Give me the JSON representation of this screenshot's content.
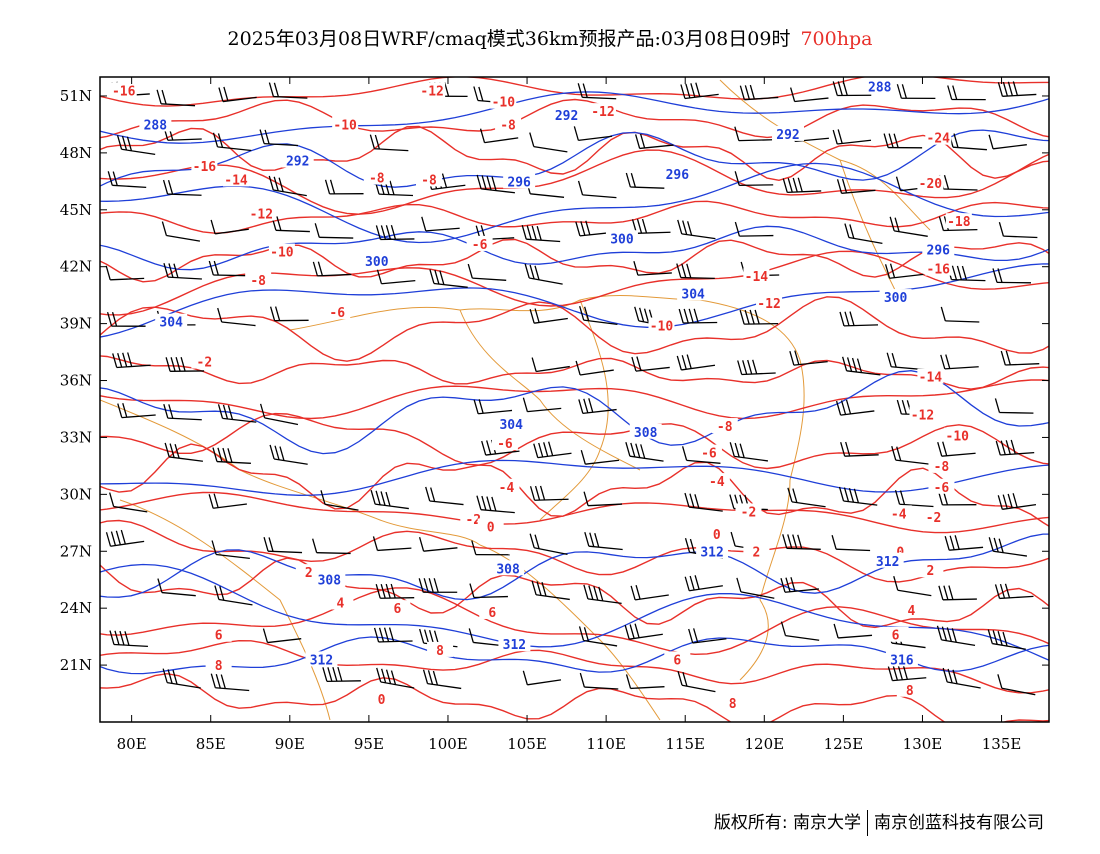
{
  "header": {
    "title": "2025年03月08日WRF/cmaq模式36km预报产品:03月08日09时",
    "level": "700hpa",
    "level_color": "#e8302a"
  },
  "map": {
    "projection": "lat-lon",
    "lon_range": [
      78,
      138
    ],
    "lat_range": [
      18,
      52
    ],
    "x_ticks": [
      "80E",
      "85E",
      "90E",
      "95E",
      "100E",
      "105E",
      "110E",
      "115E",
      "120E",
      "125E",
      "130E",
      "135E"
    ],
    "y_ticks": [
      "51N",
      "48N",
      "45N",
      "42N",
      "39N",
      "36N",
      "33N",
      "30N",
      "27N",
      "24N",
      "21N"
    ],
    "layers": {
      "temperature_contours": {
        "color": "#e8302a",
        "unit": "°C"
      },
      "geopotential_height_contours": {
        "color": "#1f3fd8"
      },
      "wind_barbs": {
        "color": "#000000"
      },
      "boundaries": {
        "color": "#e39a3a"
      }
    },
    "height_labels": [
      {
        "text": "288",
        "lon": 81.5,
        "lat": 49.5
      },
      {
        "text": "292",
        "lon": 90.5,
        "lat": 47.6
      },
      {
        "text": "296",
        "lon": 104.5,
        "lat": 46.5
      },
      {
        "text": "300",
        "lon": 111.0,
        "lat": 43.5
      },
      {
        "text": "300",
        "lon": 95.5,
        "lat": 42.3
      },
      {
        "text": "304",
        "lon": 82.5,
        "lat": 39.1
      },
      {
        "text": "304",
        "lon": 104.0,
        "lat": 33.7
      },
      {
        "text": "308",
        "lon": 112.5,
        "lat": 33.3
      },
      {
        "text": "308",
        "lon": 92.5,
        "lat": 25.5
      },
      {
        "text": "308",
        "lon": 103.8,
        "lat": 26.1
      },
      {
        "text": "312",
        "lon": 104.2,
        "lat": 22.1
      },
      {
        "text": "312",
        "lon": 92.0,
        "lat": 21.3
      },
      {
        "text": "312",
        "lon": 116.7,
        "lat": 27.0
      },
      {
        "text": "312",
        "lon": 127.8,
        "lat": 26.5
      },
      {
        "text": "316",
        "lon": 128.7,
        "lat": 21.3
      },
      {
        "text": "288",
        "lon": 127.3,
        "lat": 51.5
      },
      {
        "text": "292",
        "lon": 121.5,
        "lat": 49.0
      },
      {
        "text": "292",
        "lon": 107.5,
        "lat": 50.0
      },
      {
        "text": "296",
        "lon": 114.5,
        "lat": 46.9
      },
      {
        "text": "296",
        "lon": 131.0,
        "lat": 42.9
      },
      {
        "text": "300",
        "lon": 128.3,
        "lat": 40.4
      },
      {
        "text": "304",
        "lon": 115.5,
        "lat": 40.6
      }
    ],
    "temperature_labels": [
      {
        "text": "-16",
        "lon": 79.5,
        "lat": 51.3
      },
      {
        "text": "-16",
        "lon": 84.6,
        "lat": 47.3
      },
      {
        "text": "-14",
        "lon": 86.6,
        "lat": 46.6
      },
      {
        "text": "-12",
        "lon": 88.2,
        "lat": 44.8
      },
      {
        "text": "-10",
        "lon": 89.5,
        "lat": 42.8
      },
      {
        "text": "-8",
        "lon": 88.0,
        "lat": 41.3
      },
      {
        "text": "-6",
        "lon": 93.0,
        "lat": 39.6
      },
      {
        "text": "-2",
        "lon": 84.6,
        "lat": 37.0
      },
      {
        "text": "-10",
        "lon": 93.5,
        "lat": 49.5
      },
      {
        "text": "-8",
        "lon": 95.5,
        "lat": 46.7
      },
      {
        "text": "-8",
        "lon": 98.8,
        "lat": 46.6
      },
      {
        "text": "-6",
        "lon": 102.0,
        "lat": 43.2
      },
      {
        "text": "-12",
        "lon": 99.0,
        "lat": 51.3
      },
      {
        "text": "-10",
        "lon": 103.5,
        "lat": 50.7
      },
      {
        "text": "-8",
        "lon": 103.8,
        "lat": 49.5
      },
      {
        "text": "-12",
        "lon": 109.8,
        "lat": 50.2
      },
      {
        "text": "-24",
        "lon": 131.0,
        "lat": 48.8
      },
      {
        "text": "-20",
        "lon": 130.5,
        "lat": 46.4
      },
      {
        "text": "-18",
        "lon": 132.3,
        "lat": 44.4
      },
      {
        "text": "-16",
        "lon": 131.0,
        "lat": 41.9
      },
      {
        "text": "-14",
        "lon": 119.5,
        "lat": 41.5
      },
      {
        "text": "-12",
        "lon": 120.3,
        "lat": 40.1
      },
      {
        "text": "-10",
        "lon": 113.5,
        "lat": 38.9
      },
      {
        "text": "-14",
        "lon": 130.5,
        "lat": 36.2
      },
      {
        "text": "-12",
        "lon": 130.0,
        "lat": 34.2
      },
      {
        "text": "-10",
        "lon": 132.2,
        "lat": 33.1
      },
      {
        "text": "-8",
        "lon": 117.5,
        "lat": 33.6
      },
      {
        "text": "-6",
        "lon": 116.5,
        "lat": 32.2
      },
      {
        "text": "-8",
        "lon": 131.2,
        "lat": 31.5
      },
      {
        "text": "-6",
        "lon": 131.2,
        "lat": 30.4
      },
      {
        "text": "-4",
        "lon": 117.0,
        "lat": 30.7
      },
      {
        "text": "-4",
        "lon": 128.5,
        "lat": 29.0
      },
      {
        "text": "-2",
        "lon": 130.7,
        "lat": 28.8
      },
      {
        "text": "-2",
        "lon": 119.0,
        "lat": 29.1
      },
      {
        "text": "-4",
        "lon": 103.7,
        "lat": 30.4
      },
      {
        "text": "-6",
        "lon": 103.6,
        "lat": 32.7
      },
      {
        "text": "-2",
        "lon": 101.6,
        "lat": 28.7
      },
      {
        "text": "0",
        "lon": 102.7,
        "lat": 28.3
      },
      {
        "text": "0",
        "lon": 117.0,
        "lat": 27.9
      },
      {
        "text": "2",
        "lon": 119.5,
        "lat": 27.0
      },
      {
        "text": "0",
        "lon": 128.6,
        "lat": 27.0
      },
      {
        "text": "2",
        "lon": 130.5,
        "lat": 26.0
      },
      {
        "text": "2",
        "lon": 91.2,
        "lat": 25.9
      },
      {
        "text": "4",
        "lon": 93.2,
        "lat": 24.3
      },
      {
        "text": "6",
        "lon": 96.8,
        "lat": 24.0
      },
      {
        "text": "6",
        "lon": 102.8,
        "lat": 23.8
      },
      {
        "text": "4",
        "lon": 129.3,
        "lat": 23.9
      },
      {
        "text": "6",
        "lon": 128.3,
        "lat": 22.6
      },
      {
        "text": "6",
        "lon": 85.5,
        "lat": 22.6
      },
      {
        "text": "8",
        "lon": 85.5,
        "lat": 21.0
      },
      {
        "text": "8",
        "lon": 99.5,
        "lat": 21.8
      },
      {
        "text": "6",
        "lon": 114.5,
        "lat": 21.3
      },
      {
        "text": "8",
        "lon": 129.2,
        "lat": 19.7
      },
      {
        "text": "8",
        "lon": 118.0,
        "lat": 19.0
      },
      {
        "text": "0",
        "lon": 95.8,
        "lat": 19.2
      }
    ]
  },
  "footer": {
    "copyright": "版权所有: 南京大学",
    "company": "南京创蓝科技有限公司"
  }
}
